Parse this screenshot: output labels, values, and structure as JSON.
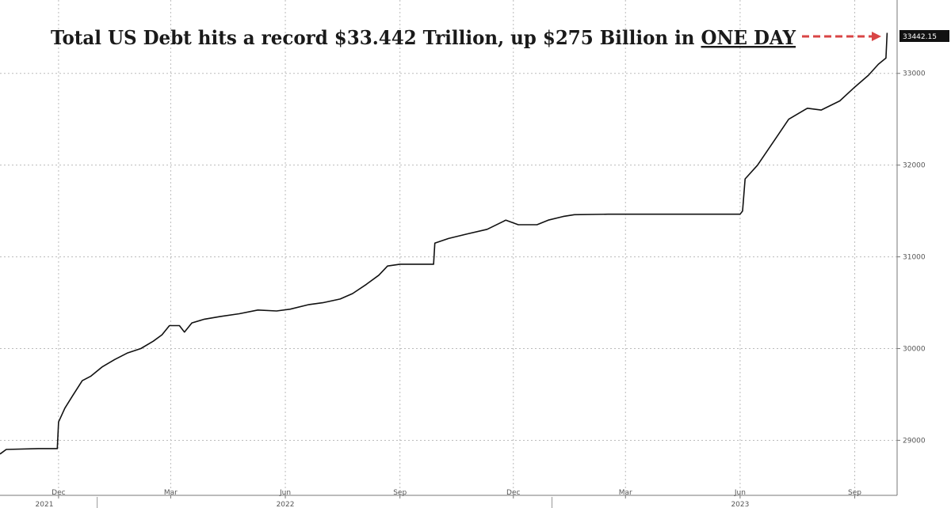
{
  "chart_data": {
    "type": "line",
    "title": {
      "prefix": "Total US Debt hits a record $33.442 Trillion, up $275 Billion in ",
      "emphasis": "ONE DAY"
    },
    "last_value_label": "33442.15",
    "ylim": [
      28400,
      33800
    ],
    "y_ticks": [
      29000,
      30000,
      31000,
      32000,
      33000
    ],
    "x_range": [
      "2021-10-15",
      "2023-10-05"
    ],
    "month_ticks": [
      {
        "date": "2021-12-01",
        "label": "Dec"
      },
      {
        "date": "2022-03-01",
        "label": "Mar"
      },
      {
        "date": "2022-06-01",
        "label": "Jun"
      },
      {
        "date": "2022-09-01",
        "label": "Sep"
      },
      {
        "date": "2022-12-01",
        "label": "Dec"
      },
      {
        "date": "2023-03-01",
        "label": "Mar"
      },
      {
        "date": "2023-06-01",
        "label": "Jun"
      },
      {
        "date": "2023-09-01",
        "label": "Sep"
      }
    ],
    "year_ticks": [
      {
        "date": "2021-10-15",
        "label": "2021"
      },
      {
        "date": "2022-06-01",
        "label": "2022"
      },
      {
        "date": "2023-06-01",
        "label": "2023"
      }
    ],
    "grid": true,
    "colors": {
      "line": "#111111",
      "grid": "#bbbbbb",
      "arrow": "#d94545",
      "label_bg": "#111111"
    },
    "series": [
      {
        "points": [
          [
            "2021-10-15",
            28850
          ],
          [
            "2021-10-20",
            28900
          ],
          [
            "2021-11-15",
            28910
          ],
          [
            "2021-11-30",
            28910
          ],
          [
            "2021-12-01",
            29200
          ],
          [
            "2021-12-06",
            29350
          ],
          [
            "2021-12-12",
            29480
          ],
          [
            "2021-12-20",
            29650
          ],
          [
            "2021-12-27",
            29700
          ],
          [
            "2022-01-05",
            29800
          ],
          [
            "2022-01-15",
            29880
          ],
          [
            "2022-01-25",
            29950
          ],
          [
            "2022-02-05",
            30000
          ],
          [
            "2022-02-15",
            30080
          ],
          [
            "2022-02-22",
            30150
          ],
          [
            "2022-02-28",
            30250
          ],
          [
            "2022-03-08",
            30250
          ],
          [
            "2022-03-12",
            30180
          ],
          [
            "2022-03-18",
            30280
          ],
          [
            "2022-03-28",
            30320
          ],
          [
            "2022-04-10",
            30350
          ],
          [
            "2022-04-25",
            30380
          ],
          [
            "2022-05-10",
            30420
          ],
          [
            "2022-05-25",
            30410
          ],
          [
            "2022-06-05",
            30430
          ],
          [
            "2022-06-20",
            30480
          ],
          [
            "2022-07-01",
            30500
          ],
          [
            "2022-07-15",
            30540
          ],
          [
            "2022-07-25",
            30600
          ],
          [
            "2022-08-05",
            30700
          ],
          [
            "2022-08-15",
            30800
          ],
          [
            "2022-08-22",
            30900
          ],
          [
            "2022-09-01",
            30920
          ],
          [
            "2022-09-15",
            30920
          ],
          [
            "2022-09-28",
            30920
          ],
          [
            "2022-09-29",
            31150
          ],
          [
            "2022-10-10",
            31200
          ],
          [
            "2022-10-25",
            31250
          ],
          [
            "2022-11-10",
            31300
          ],
          [
            "2022-11-25",
            31400
          ],
          [
            "2022-12-05",
            31350
          ],
          [
            "2022-12-20",
            31350
          ],
          [
            "2022-12-29",
            31400
          ],
          [
            "2023-01-10",
            31440
          ],
          [
            "2023-01-19",
            31460
          ],
          [
            "2023-02-15",
            31465
          ],
          [
            "2023-03-15",
            31465
          ],
          [
            "2023-04-15",
            31465
          ],
          [
            "2023-05-15",
            31465
          ],
          [
            "2023-06-01",
            31465
          ],
          [
            "2023-06-03",
            31500
          ],
          [
            "2023-06-05",
            31850
          ],
          [
            "2023-06-15",
            32000
          ],
          [
            "2023-06-30",
            32300
          ],
          [
            "2023-07-10",
            32500
          ],
          [
            "2023-07-25",
            32620
          ],
          [
            "2023-08-05",
            32600
          ],
          [
            "2023-08-20",
            32700
          ],
          [
            "2023-09-01",
            32850
          ],
          [
            "2023-09-12",
            32980
          ],
          [
            "2023-09-20",
            33100
          ],
          [
            "2023-09-26",
            33167
          ],
          [
            "2023-09-27",
            33442
          ]
        ]
      }
    ]
  }
}
